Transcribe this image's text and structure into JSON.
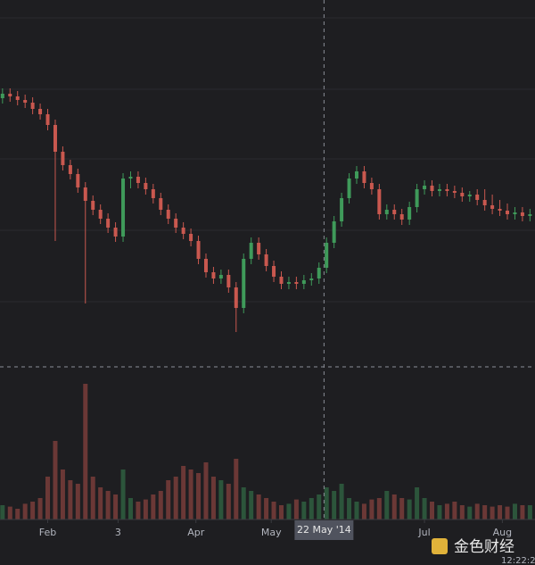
{
  "chart_data": {
    "type": "candlestick",
    "x": [
      14,
      17,
      20,
      23,
      26,
      29,
      32,
      35,
      38,
      41,
      44,
      47,
      50,
      53,
      56,
      59,
      62,
      65,
      68,
      71,
      74,
      77,
      80,
      83,
      86,
      89,
      92,
      95,
      98,
      101,
      104,
      107,
      110,
      113,
      116,
      119,
      122,
      125,
      128,
      131,
      134,
      137,
      140,
      143,
      146,
      149,
      152,
      155,
      158,
      161,
      164,
      167,
      170,
      173,
      176,
      179,
      182,
      185,
      188,
      191,
      194,
      197,
      200,
      203,
      206,
      209,
      212,
      215,
      218,
      221,
      224
    ],
    "open": [
      300,
      305,
      302,
      298,
      295,
      288,
      282,
      270,
      240,
      225,
      215,
      200,
      185,
      175,
      165,
      155,
      145,
      210,
      212,
      205,
      198,
      188,
      175,
      165,
      155,
      148,
      140,
      120,
      105,
      98,
      102,
      88,
      65,
      120,
      138,
      125,
      112,
      100,
      92,
      94,
      92,
      96,
      98,
      110,
      138,
      162,
      188,
      210,
      218,
      205,
      198,
      170,
      175,
      170,
      164,
      178,
      198,
      202,
      196,
      198,
      196,
      194,
      190,
      192,
      186,
      180,
      176,
      174,
      170,
      172,
      168
    ],
    "high": [
      311,
      311,
      308,
      304,
      301,
      294,
      288,
      276,
      246,
      231,
      221,
      206,
      191,
      181,
      171,
      161,
      216,
      218,
      218,
      211,
      204,
      194,
      181,
      171,
      161,
      154,
      146,
      126,
      111,
      108,
      108,
      94,
      126,
      144,
      144,
      131,
      118,
      106,
      100,
      100,
      102,
      104,
      116,
      144,
      168,
      194,
      216,
      224,
      224,
      211,
      204,
      181,
      181,
      176,
      184,
      204,
      208,
      208,
      204,
      204,
      202,
      200,
      196,
      198,
      198,
      192,
      186,
      182,
      178,
      178,
      176
    ],
    "low": [
      294,
      296,
      292,
      289,
      282,
      276,
      264,
      140,
      219,
      209,
      194,
      70,
      169,
      159,
      149,
      139,
      139,
      199,
      199,
      192,
      182,
      169,
      159,
      149,
      142,
      134,
      114,
      99,
      92,
      92,
      82,
      38,
      59,
      114,
      119,
      106,
      94,
      86,
      86,
      86,
      86,
      90,
      92,
      104,
      132,
      156,
      182,
      204,
      199,
      192,
      164,
      164,
      164,
      158,
      158,
      172,
      192,
      190,
      190,
      190,
      188,
      184,
      184,
      180,
      174,
      170,
      168,
      164,
      164,
      162,
      162
    ],
    "close": [
      305,
      302,
      298,
      295,
      288,
      282,
      270,
      240,
      225,
      215,
      200,
      185,
      175,
      165,
      155,
      145,
      210,
      212,
      205,
      198,
      188,
      175,
      165,
      155,
      148,
      140,
      120,
      105,
      98,
      102,
      88,
      65,
      120,
      138,
      125,
      112,
      100,
      92,
      94,
      92,
      96,
      98,
      110,
      138,
      162,
      188,
      210,
      218,
      205,
      198,
      170,
      175,
      170,
      164,
      178,
      198,
      202,
      196,
      198,
      196,
      194,
      190,
      192,
      186,
      180,
      176,
      174,
      170,
      172,
      168,
      170
    ],
    "volume": [
      20,
      18,
      15,
      22,
      25,
      30,
      60,
      110,
      70,
      55,
      50,
      190,
      60,
      45,
      40,
      35,
      70,
      30,
      25,
      28,
      35,
      40,
      55,
      60,
      75,
      70,
      65,
      80,
      60,
      55,
      50,
      85,
      45,
      40,
      35,
      30,
      25,
      20,
      22,
      28,
      25,
      30,
      35,
      45,
      40,
      50,
      30,
      25,
      22,
      28,
      30,
      40,
      35,
      30,
      28,
      45,
      30,
      25,
      20,
      22,
      25,
      20,
      18,
      22,
      20,
      18,
      20,
      18,
      22,
      20,
      20
    ],
    "up_color": "#3f9a5a",
    "down_color": "#c9584f",
    "xlim": [
      13,
      226
    ],
    "ylim": [
      0,
      410
    ],
    "volume_lim": [
      0,
      200
    ],
    "xticks": [
      {
        "value": 32,
        "label": "Feb"
      },
      {
        "value": 60,
        "label": "3"
      },
      {
        "value": 91,
        "label": "Apr"
      },
      {
        "value": 121,
        "label": "May"
      },
      {
        "value": 182,
        "label": "Jul"
      },
      {
        "value": 213,
        "label": "Aug"
      }
    ],
    "crosshair": {
      "x": 142,
      "label": "22 May '14"
    }
  },
  "watermark": "金色财经",
  "clock": "12:22:2"
}
